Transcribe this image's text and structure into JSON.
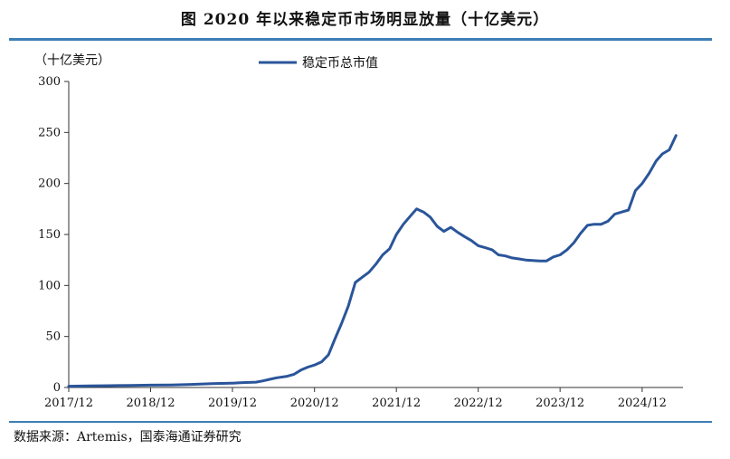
{
  "title": "图  2020 年以来稳定币市场明显放量（十亿美元）",
  "unit_label": "（十亿美元）",
  "source": "数据来源：Artemis，国泰海通证券研究",
  "colors": {
    "accent": "#3c7fb6",
    "series": "#2a559a"
  },
  "chart_data": {
    "type": "line",
    "title": "图  2020 年以来稳定币市场明显放量（十亿美元）",
    "xlabel": "",
    "ylabel": "（十亿美元）",
    "ylim": [
      0,
      300
    ],
    "yticks": [
      0,
      50,
      100,
      150,
      200,
      250,
      300
    ],
    "xlim": [
      "2017-12",
      "2025-06"
    ],
    "xticks": [
      "2017/12",
      "2018/12",
      "2019/12",
      "2020/12",
      "2021/12",
      "2022/12",
      "2023/12",
      "2024/12"
    ],
    "legend": "top-center",
    "grid": false,
    "series": [
      {
        "name": "稳定币总市值",
        "color": "#2a559a",
        "points": [
          [
            "2017-12-01",
            1.2
          ],
          [
            "2018-03-01",
            1.5
          ],
          [
            "2018-06-01",
            1.8
          ],
          [
            "2018-09-01",
            2.0
          ],
          [
            "2018-12-01",
            2.3
          ],
          [
            "2019-03-01",
            2.5
          ],
          [
            "2019-06-01",
            3.0
          ],
          [
            "2019-09-01",
            3.8
          ],
          [
            "2019-12-01",
            4.3
          ],
          [
            "2020-01-15",
            4.8
          ],
          [
            "2020-02-15",
            5.0
          ],
          [
            "2020-03-15",
            5.2
          ],
          [
            "2020-04-15",
            6.5
          ],
          [
            "2020-05-15",
            8.0
          ],
          [
            "2020-06-15",
            9.5
          ],
          [
            "2020-08-01",
            11.0
          ],
          [
            "2020-09-01",
            13.0
          ],
          [
            "2020-10-01",
            17.0
          ],
          [
            "2020-11-01",
            20.0
          ],
          [
            "2020-12-01",
            22.0
          ],
          [
            "2021-01-01",
            25.0
          ],
          [
            "2021-02-01",
            32.0
          ],
          [
            "2021-03-01",
            47.0
          ],
          [
            "2021-04-01",
            63.0
          ],
          [
            "2021-05-01",
            80.0
          ],
          [
            "2021-06-01",
            103.0
          ],
          [
            "2021-07-01",
            108.0
          ],
          [
            "2021-08-01",
            113.0
          ],
          [
            "2021-09-01",
            121.0
          ],
          [
            "2021-10-01",
            130.0
          ],
          [
            "2021-11-01",
            136.0
          ],
          [
            "2021-12-01",
            150.0
          ],
          [
            "2022-01-01",
            160.0
          ],
          [
            "2022-02-01",
            168.0
          ],
          [
            "2022-03-01",
            175.0
          ],
          [
            "2022-04-01",
            172.0
          ],
          [
            "2022-05-01",
            167.0
          ],
          [
            "2022-06-01",
            158.0
          ],
          [
            "2022-07-01",
            153.0
          ],
          [
            "2022-08-01",
            157.0
          ],
          [
            "2022-09-01",
            152.0
          ],
          [
            "2022-10-01",
            148.0
          ],
          [
            "2022-11-01",
            144.0
          ],
          [
            "2022-12-01",
            139.0
          ],
          [
            "2023-01-01",
            137.0
          ],
          [
            "2023-02-01",
            135.0
          ],
          [
            "2023-03-01",
            130.0
          ],
          [
            "2023-04-01",
            129.0
          ],
          [
            "2023-05-01",
            127.0
          ],
          [
            "2023-06-01",
            126.0
          ],
          [
            "2023-07-01",
            125.0
          ],
          [
            "2023-08-01",
            124.5
          ],
          [
            "2023-09-01",
            124.0
          ],
          [
            "2023-10-01",
            124.0
          ],
          [
            "2023-11-01",
            128.0
          ],
          [
            "2023-12-01",
            130.0
          ],
          [
            "2024-01-01",
            135.0
          ],
          [
            "2024-02-01",
            142.0
          ],
          [
            "2024-03-01",
            151.0
          ],
          [
            "2024-04-01",
            159.0
          ],
          [
            "2024-05-01",
            160.0
          ],
          [
            "2024-06-01",
            160.0
          ],
          [
            "2024-07-01",
            163.0
          ],
          [
            "2024-08-01",
            170.0
          ],
          [
            "2024-09-01",
            172.0
          ],
          [
            "2024-10-01",
            174.0
          ],
          [
            "2024-11-01",
            193.0
          ],
          [
            "2024-12-01",
            200.0
          ],
          [
            "2025-01-01",
            210.0
          ],
          [
            "2025-02-01",
            222.0
          ],
          [
            "2025-03-01",
            229.0
          ],
          [
            "2025-04-01",
            233.0
          ],
          [
            "2025-05-01",
            247.0
          ]
        ]
      }
    ]
  }
}
